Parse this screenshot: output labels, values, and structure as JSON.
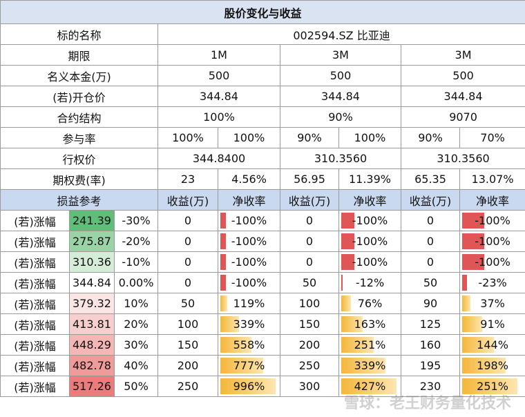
{
  "title": "股价变化与收益",
  "info_rows": [
    {
      "label": "标的名称",
      "cells": [
        "002594.SZ 比亚迪"
      ]
    },
    {
      "label": "期限",
      "cells": [
        "1M",
        "3M",
        "3M"
      ]
    },
    {
      "label": "名义本金(万)",
      "cells": [
        "500",
        "500",
        "500"
      ]
    },
    {
      "label": "(若)开仓价",
      "cells": [
        "344.84",
        "344.84",
        "344.84"
      ]
    },
    {
      "label": "合约结构",
      "cells": [
        "100%",
        "90%",
        "9070"
      ]
    },
    {
      "label": "参与率",
      "cells": [
        "100%",
        "100%",
        "90%",
        "100%",
        "90%",
        "70%"
      ]
    },
    {
      "label": "行权价",
      "cells": [
        "344.8400",
        "310.3560",
        "310.3560"
      ]
    },
    {
      "label": "期权费(率)",
      "cells": [
        "23",
        "4.56%",
        "56.95",
        "11.39%",
        "65.35",
        "13.07%"
      ]
    }
  ],
  "table": {
    "header": [
      "损益参考",
      "收益(万)",
      "净收率",
      "收益(万)",
      "净收率",
      "收益(万)",
      "净收率"
    ],
    "rows": [
      [
        "(若)涨幅",
        "241.39",
        "-30%",
        "0",
        "-100%",
        "0",
        "-100%",
        "0",
        "-100%"
      ],
      [
        "(若)涨幅",
        "275.87",
        "-20%",
        "0",
        "-100%",
        "0",
        "-100%",
        "0",
        "-100%"
      ],
      [
        "(若)涨幅",
        "310.36",
        "-10%",
        "0",
        "-100%",
        "0",
        "-100%",
        "0",
        "-100%"
      ],
      [
        "(若)涨幅",
        "344.84",
        "0.00%",
        "0",
        "-100%",
        "50",
        "-12%",
        "50",
        "-23%"
      ],
      [
        "(若)涨幅",
        "379.32",
        "10%",
        "50",
        "119%",
        "100",
        "76%",
        "90",
        "37%"
      ],
      [
        "(若)涨幅",
        "413.81",
        "20%",
        "100",
        "339%",
        "150",
        "163%",
        "125",
        "91%"
      ],
      [
        "(若)涨幅",
        "448.29",
        "30%",
        "150",
        "558%",
        "200",
        "251%",
        "160",
        "144%"
      ],
      [
        "(若)涨幅",
        "482.78",
        "40%",
        "200",
        "777%",
        "250",
        "339%",
        "195",
        "198%"
      ],
      [
        "(若)涨幅",
        "517.26",
        "50%",
        "250",
        "996%",
        "300",
        "427%",
        "230",
        "251%"
      ]
    ]
  },
  "watermark": "雪球：老王财务量化技术"
}
